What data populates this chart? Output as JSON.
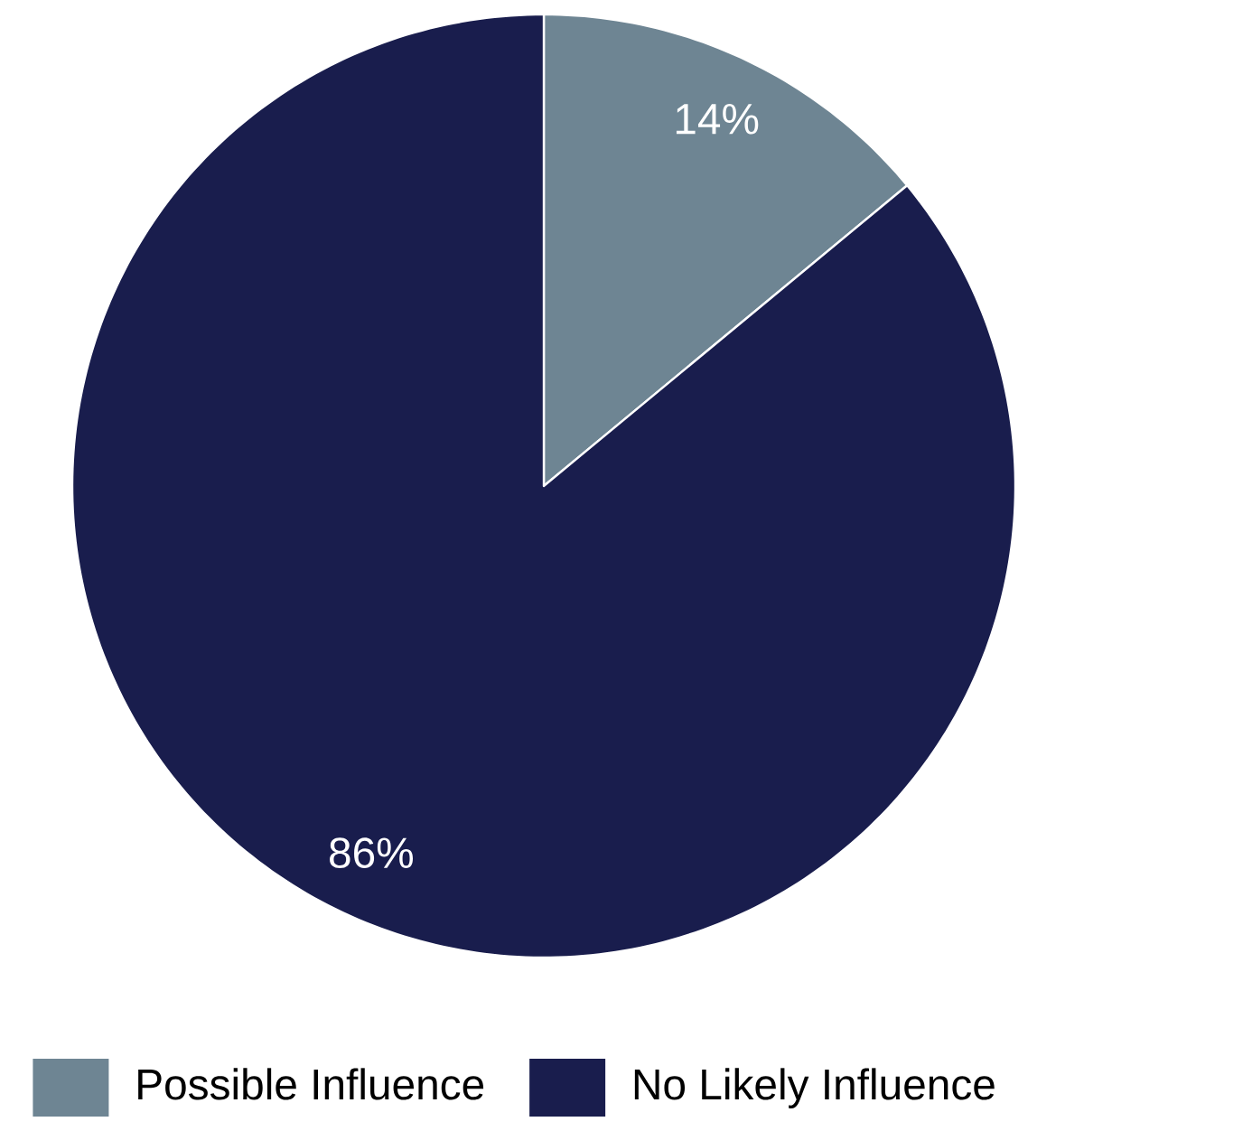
{
  "chart_data": {
    "type": "pie",
    "categories": [
      "Possible Influence",
      "No Likely Influence"
    ],
    "values": [
      14,
      86
    ],
    "colors": [
      "#6e8593",
      "#191d4d"
    ],
    "value_labels": [
      "14%",
      "86%"
    ],
    "legend": "bottom"
  }
}
